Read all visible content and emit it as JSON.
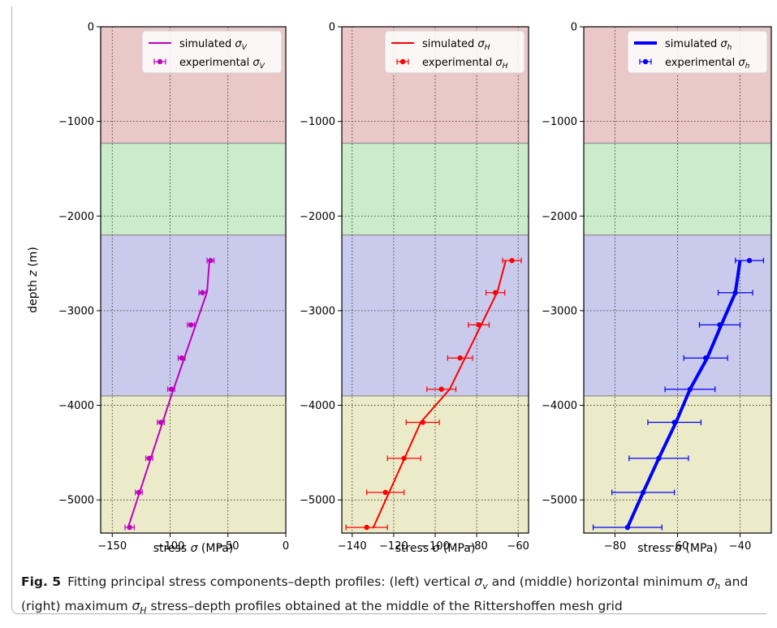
{
  "figure": {
    "caption_label": "Fig. 5",
    "caption_text": "Fitting principal stress components–depth profiles: (left) vertical σv and (middle) horizontal minimum σh and (right) maximum σH stress–depth profiles obtained at the middle of the Rittershoffen mesh grid"
  },
  "chart_data": [
    {
      "type": "line",
      "panel": "left",
      "xlabel": "stress σ (MPa)",
      "ylabel": "depth z (m)",
      "xlim": [
        -160,
        0
      ],
      "ylim": [
        -5350,
        0
      ],
      "xticks": [
        -150,
        -100,
        -50,
        0
      ],
      "xtick_labels": [
        "−150",
        "−100",
        "−50",
        "0"
      ],
      "yticks": [
        0,
        -1000,
        -2000,
        -3000,
        -4000,
        -5000
      ],
      "ytick_labels": [
        "0",
        "−1000",
        "−2000",
        "−3000",
        "−4000",
        "−5000"
      ],
      "grid": true,
      "legend_position": "top-right",
      "bands": [
        {
          "from": 0,
          "to": -1230,
          "color": "#ebc8c8"
        },
        {
          "from": -1230,
          "to": -2200,
          "color": "#cbeccc"
        },
        {
          "from": -2200,
          "to": -3900,
          "color": "#cacaec"
        },
        {
          "from": -3900,
          "to": -5350,
          "color": "#ecebc9"
        }
      ],
      "series": [
        {
          "name": "simulated σV",
          "kind": "line",
          "color": "#bf00bf",
          "line_width": 2,
          "x": [
            -66,
            -68,
            -99,
            -136
          ],
          "y": [
            -2470,
            -2800,
            -3900,
            -5280
          ]
        },
        {
          "name": "experimental σV",
          "kind": "errorbar",
          "color": "#bf00bf",
          "x": [
            -65,
            -72,
            -82,
            -90,
            -99,
            -108,
            -118,
            -127,
            -135
          ],
          "y": [
            -2470,
            -2810,
            -3150,
            -3500,
            -3830,
            -4180,
            -4560,
            -4920,
            -5290
          ],
          "xerr": [
            3,
            3,
            3,
            3,
            3,
            3,
            3,
            3,
            4
          ]
        }
      ]
    },
    {
      "type": "line",
      "panel": "middle",
      "xlabel": "stress σ (MPa)",
      "ylabel": "",
      "xlim": [
        -145,
        -55
      ],
      "ylim": [
        -5350,
        0
      ],
      "xticks": [
        -140,
        -120,
        -100,
        -80,
        -60
      ],
      "xtick_labels": [
        "−140",
        "−120",
        "−100",
        "−80",
        "−60"
      ],
      "yticks": [
        0,
        -1000,
        -2000,
        -3000,
        -4000,
        -5000
      ],
      "ytick_labels": [
        "0",
        "−1000",
        "−2000",
        "−3000",
        "−4000",
        "−5000"
      ],
      "grid": true,
      "legend_position": "top-right",
      "bands": [
        {
          "from": 0,
          "to": -1230,
          "color": "#ebc8c8"
        },
        {
          "from": -1230,
          "to": -2200,
          "color": "#cbeccc"
        },
        {
          "from": -2200,
          "to": -3900,
          "color": "#cacaec"
        },
        {
          "from": -3900,
          "to": -5350,
          "color": "#ecebc9"
        }
      ],
      "series": [
        {
          "name": "simulated σH",
          "kind": "line",
          "color": "#ff0000",
          "line_width": 2,
          "x": [
            -66,
            -70,
            -93,
            -107,
            -130
          ],
          "y": [
            -2470,
            -2800,
            -3830,
            -4180,
            -5300
          ]
        },
        {
          "name": "experimental σH",
          "kind": "errorbar",
          "color": "#ff0000",
          "x": [
            -63,
            -71,
            -79,
            -88,
            -97,
            -106,
            -115,
            -124,
            -133
          ],
          "y": [
            -2470,
            -2810,
            -3150,
            -3500,
            -3830,
            -4180,
            -4560,
            -4920,
            -5290
          ],
          "xerr": [
            4.5,
            4.5,
            5,
            6,
            7,
            8,
            8,
            9,
            10
          ]
        }
      ]
    },
    {
      "type": "line",
      "panel": "right",
      "xlabel": "stress σ (MPa)",
      "ylabel": "",
      "xlim": [
        -90,
        -30
      ],
      "ylim": [
        -5350,
        0
      ],
      "xticks": [
        -80,
        -60,
        -40
      ],
      "xtick_labels": [
        "−80",
        "−60",
        "−40"
      ],
      "yticks": [
        0,
        -1000,
        -2000,
        -3000,
        -4000,
        -5000
      ],
      "ytick_labels": [
        "0",
        "−1000",
        "−2000",
        "−3000",
        "−4000",
        "−5000"
      ],
      "grid": true,
      "legend_position": "top-right",
      "bands": [
        {
          "from": 0,
          "to": -1230,
          "color": "#ebc8c8"
        },
        {
          "from": -1230,
          "to": -2200,
          "color": "#cbeccc"
        },
        {
          "from": -2200,
          "to": -3900,
          "color": "#cacaec"
        },
        {
          "from": -3900,
          "to": -5350,
          "color": "#ecebc9"
        }
      ],
      "series": [
        {
          "name": "simulated σh",
          "kind": "line",
          "color": "#0000ff",
          "line_width": 4,
          "x": [
            -40,
            -41.5,
            -46,
            -50.5,
            -56,
            -60.5,
            -66,
            -71,
            -76
          ],
          "y": [
            -2470,
            -2810,
            -3150,
            -3500,
            -3830,
            -4180,
            -4560,
            -4920,
            -5290
          ]
        },
        {
          "name": "experimental σh",
          "kind": "errorbar",
          "color": "#0000ff",
          "x": [
            -37,
            -41.5,
            -46.5,
            -51,
            -56,
            -61,
            -66,
            -71,
            -76
          ],
          "y": [
            -2470,
            -2810,
            -3150,
            -3500,
            -3830,
            -4180,
            -4560,
            -4920,
            -5290
          ],
          "xerr": [
            4.5,
            5.5,
            6.5,
            7,
            8,
            8.5,
            9.5,
            10,
            11
          ]
        }
      ]
    }
  ]
}
